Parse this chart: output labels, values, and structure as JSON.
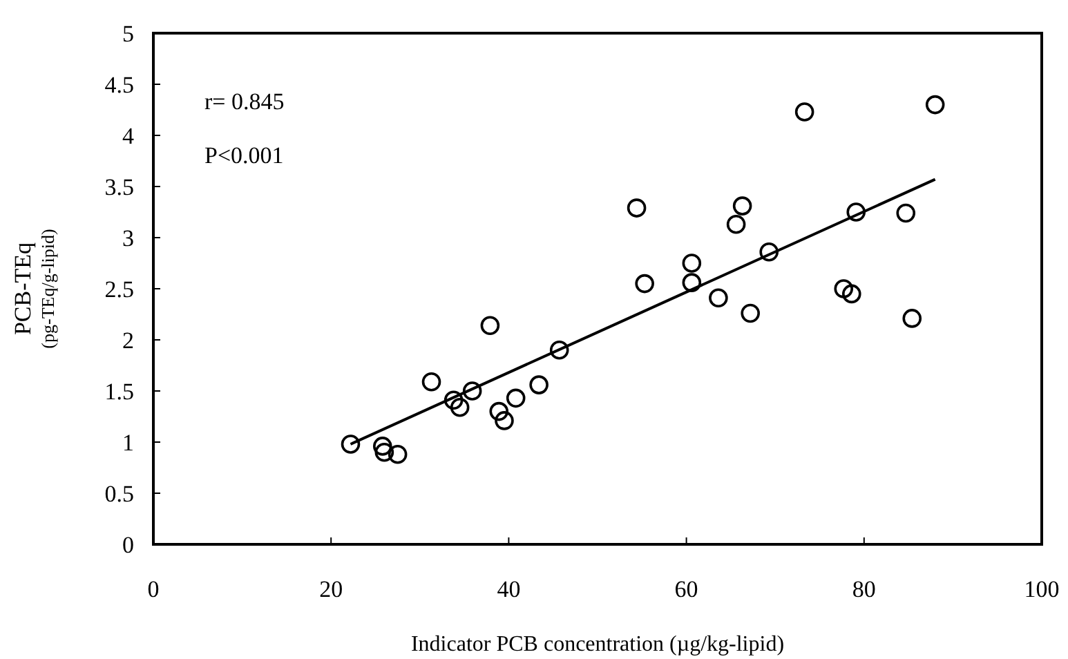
{
  "chart_data": {
    "type": "scatter",
    "xlabel": "Indicator PCB concentration (µg/kg-lipid)",
    "ylabel": "PCB-TEq\n(pg-TEq/g-lipid)",
    "annotations": [
      "r= 0.845",
      "P<0.001"
    ],
    "xlim": [
      0,
      100
    ],
    "xticks": [
      0,
      20,
      40,
      60,
      80,
      100
    ],
    "ylim": [
      0,
      5
    ],
    "yticks": [
      0,
      0.5,
      1,
      1.5,
      2,
      2.5,
      3,
      3.5,
      4,
      4.5,
      5
    ],
    "grid": false,
    "marker": "circle",
    "series": [
      {
        "color": "#000000",
        "x": [
          22.2,
          25.8,
          26.0,
          27.5,
          31.3,
          33.8,
          34.5,
          35.9,
          37.9,
          38.9,
          39.5,
          40.8,
          43.4,
          45.7,
          54.4,
          55.3,
          60.6,
          60.6,
          63.6,
          65.6,
          66.3,
          67.2,
          69.3,
          73.3,
          77.7,
          78.6,
          79.1,
          84.7,
          85.4,
          88.0
        ],
        "values": [
          0.98,
          0.96,
          0.9,
          0.88,
          1.59,
          1.41,
          1.34,
          1.5,
          2.14,
          1.3,
          1.21,
          1.43,
          1.56,
          1.9,
          3.29,
          2.55,
          2.75,
          2.56,
          2.41,
          3.13,
          3.31,
          2.26,
          2.86,
          4.23,
          2.5,
          2.45,
          3.25,
          3.24,
          2.21,
          4.3
        ]
      },
      {
        "type": "line",
        "color": "#000000",
        "line_style": "solid",
        "marker": "none",
        "x": [
          22.2,
          88.0
        ],
        "values": [
          0.98,
          3.57
        ]
      }
    ]
  }
}
